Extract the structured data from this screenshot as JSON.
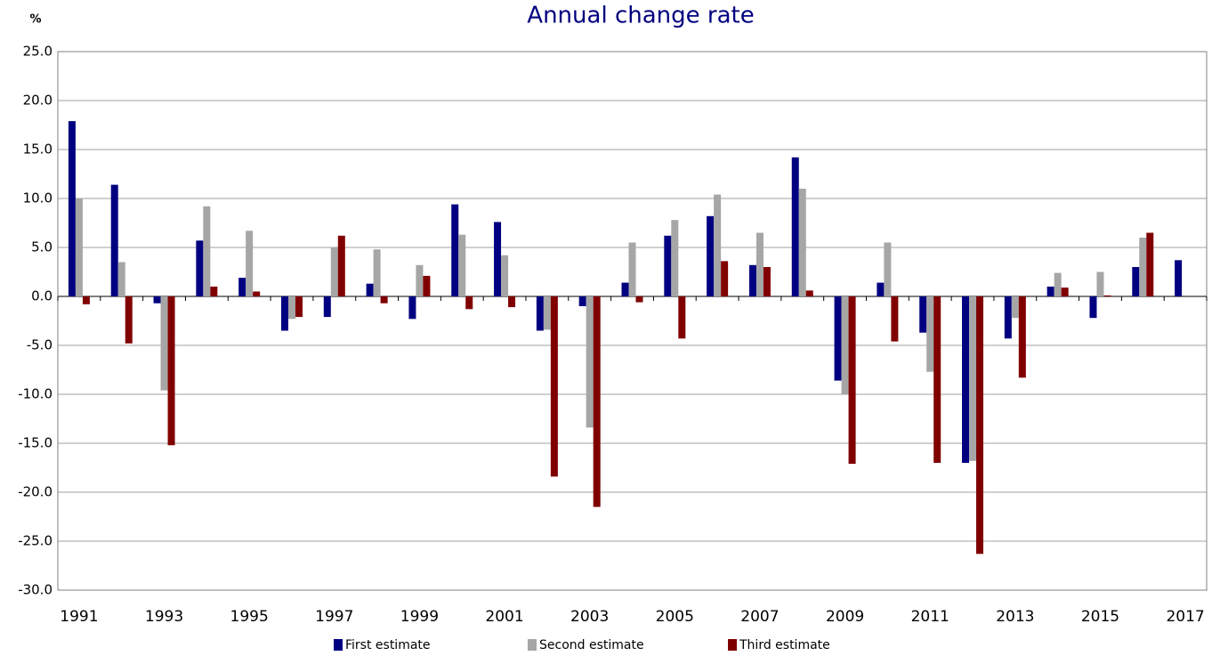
{
  "chart_data": {
    "type": "bar",
    "title": "Annual change rate",
    "y_label": "%",
    "categories": [
      "1991",
      null,
      "1993",
      null,
      "1995",
      null,
      "1997",
      null,
      "1999",
      null,
      "2001",
      null,
      "2003",
      null,
      "2005",
      null,
      "2007",
      null,
      "2009",
      null,
      "2011",
      null,
      "2013",
      null,
      "2015",
      null,
      "2017"
    ],
    "series": [
      {
        "name": "First estimate",
        "color": "#000080",
        "values": [
          17.9,
          11.4,
          -0.7,
          5.7,
          1.9,
          -3.5,
          -2.1,
          1.3,
          -2.3,
          9.4,
          7.6,
          -3.5,
          -1.0,
          1.4,
          6.2,
          8.2,
          3.2,
          14.2,
          -8.6,
          1.4,
          -3.7,
          -17.0,
          -4.3,
          1.0,
          -2.2,
          3.0,
          3.7
        ]
      },
      {
        "name": "Second estimate",
        "color": "#a6a6a6",
        "values": [
          10.0,
          3.5,
          -9.6,
          9.2,
          6.7,
          -2.3,
          5.0,
          4.8,
          3.2,
          6.3,
          4.2,
          -3.4,
          -13.4,
          5.5,
          7.8,
          10.4,
          6.5,
          11.0,
          -10.0,
          5.5,
          -7.7,
          -16.8,
          -2.2,
          2.4,
          2.5,
          6.0,
          null
        ]
      },
      {
        "name": "Third estimate",
        "color": "#800000",
        "values": [
          -0.8,
          -4.8,
          -15.2,
          1.0,
          0.5,
          -2.1,
          6.2,
          -0.7,
          2.1,
          -1.3,
          -1.1,
          -18.4,
          -21.5,
          -0.6,
          -4.3,
          3.6,
          3.0,
          0.6,
          -17.1,
          -4.6,
          -17.0,
          -26.3,
          -8.3,
          0.9,
          0.1,
          6.5,
          null
        ]
      }
    ],
    "ylim": [
      -30,
      25
    ],
    "yticks": [
      {
        "value": -30,
        "label": "-30.0"
      },
      {
        "value": -25,
        "label": "-25.0"
      },
      {
        "value": -20,
        "label": "-20.0"
      },
      {
        "value": -15,
        "label": "-15.0"
      },
      {
        "value": -10,
        "label": "-10.0"
      },
      {
        "value": -5,
        "label": "-5.0"
      },
      {
        "value": 0,
        "label": "0.0"
      },
      {
        "value": 5,
        "label": "5.0"
      },
      {
        "value": 10,
        "label": "10.0"
      },
      {
        "value": 15,
        "label": "15.0"
      },
      {
        "value": 20,
        "label": "20.0"
      },
      {
        "value": 25,
        "label": "25.0"
      }
    ],
    "grid": true,
    "legend": "bottom"
  }
}
